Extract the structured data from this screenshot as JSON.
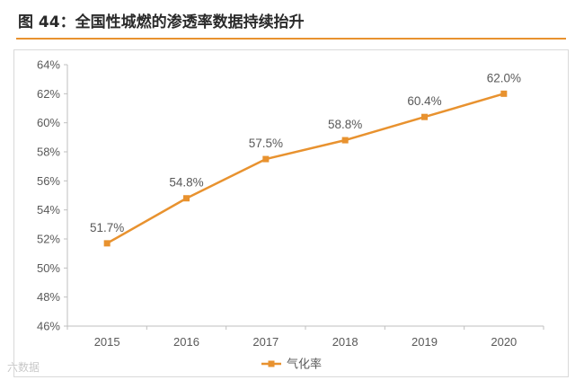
{
  "figure": {
    "title": "图 44：全国性城燃的渗透率数据持续抬升",
    "watermark": "六数据"
  },
  "colors": {
    "accent": "#e8922f",
    "axis": "#bfbfbf",
    "text": "#595959"
  },
  "chart_data": {
    "type": "line",
    "title": "",
    "xlabel": "",
    "ylabel": "",
    "categories": [
      "2015",
      "2016",
      "2017",
      "2018",
      "2019",
      "2020"
    ],
    "series": [
      {
        "name": "气化率",
        "values": [
          51.7,
          54.8,
          57.5,
          58.8,
          60.4,
          62.0
        ],
        "labels": [
          "51.7%",
          "54.8%",
          "57.5%",
          "58.8%",
          "60.4%",
          "62.0%"
        ],
        "color": "#e8922f",
        "marker": "square"
      }
    ],
    "ylim": [
      46,
      64
    ],
    "yticks": [
      46,
      48,
      50,
      52,
      54,
      56,
      58,
      60,
      62,
      64
    ],
    "ytick_labels": [
      "46%",
      "48%",
      "50%",
      "52%",
      "54%",
      "56%",
      "58%",
      "60%",
      "62%",
      "64%"
    ],
    "grid": false,
    "legend": "bottom-center"
  }
}
